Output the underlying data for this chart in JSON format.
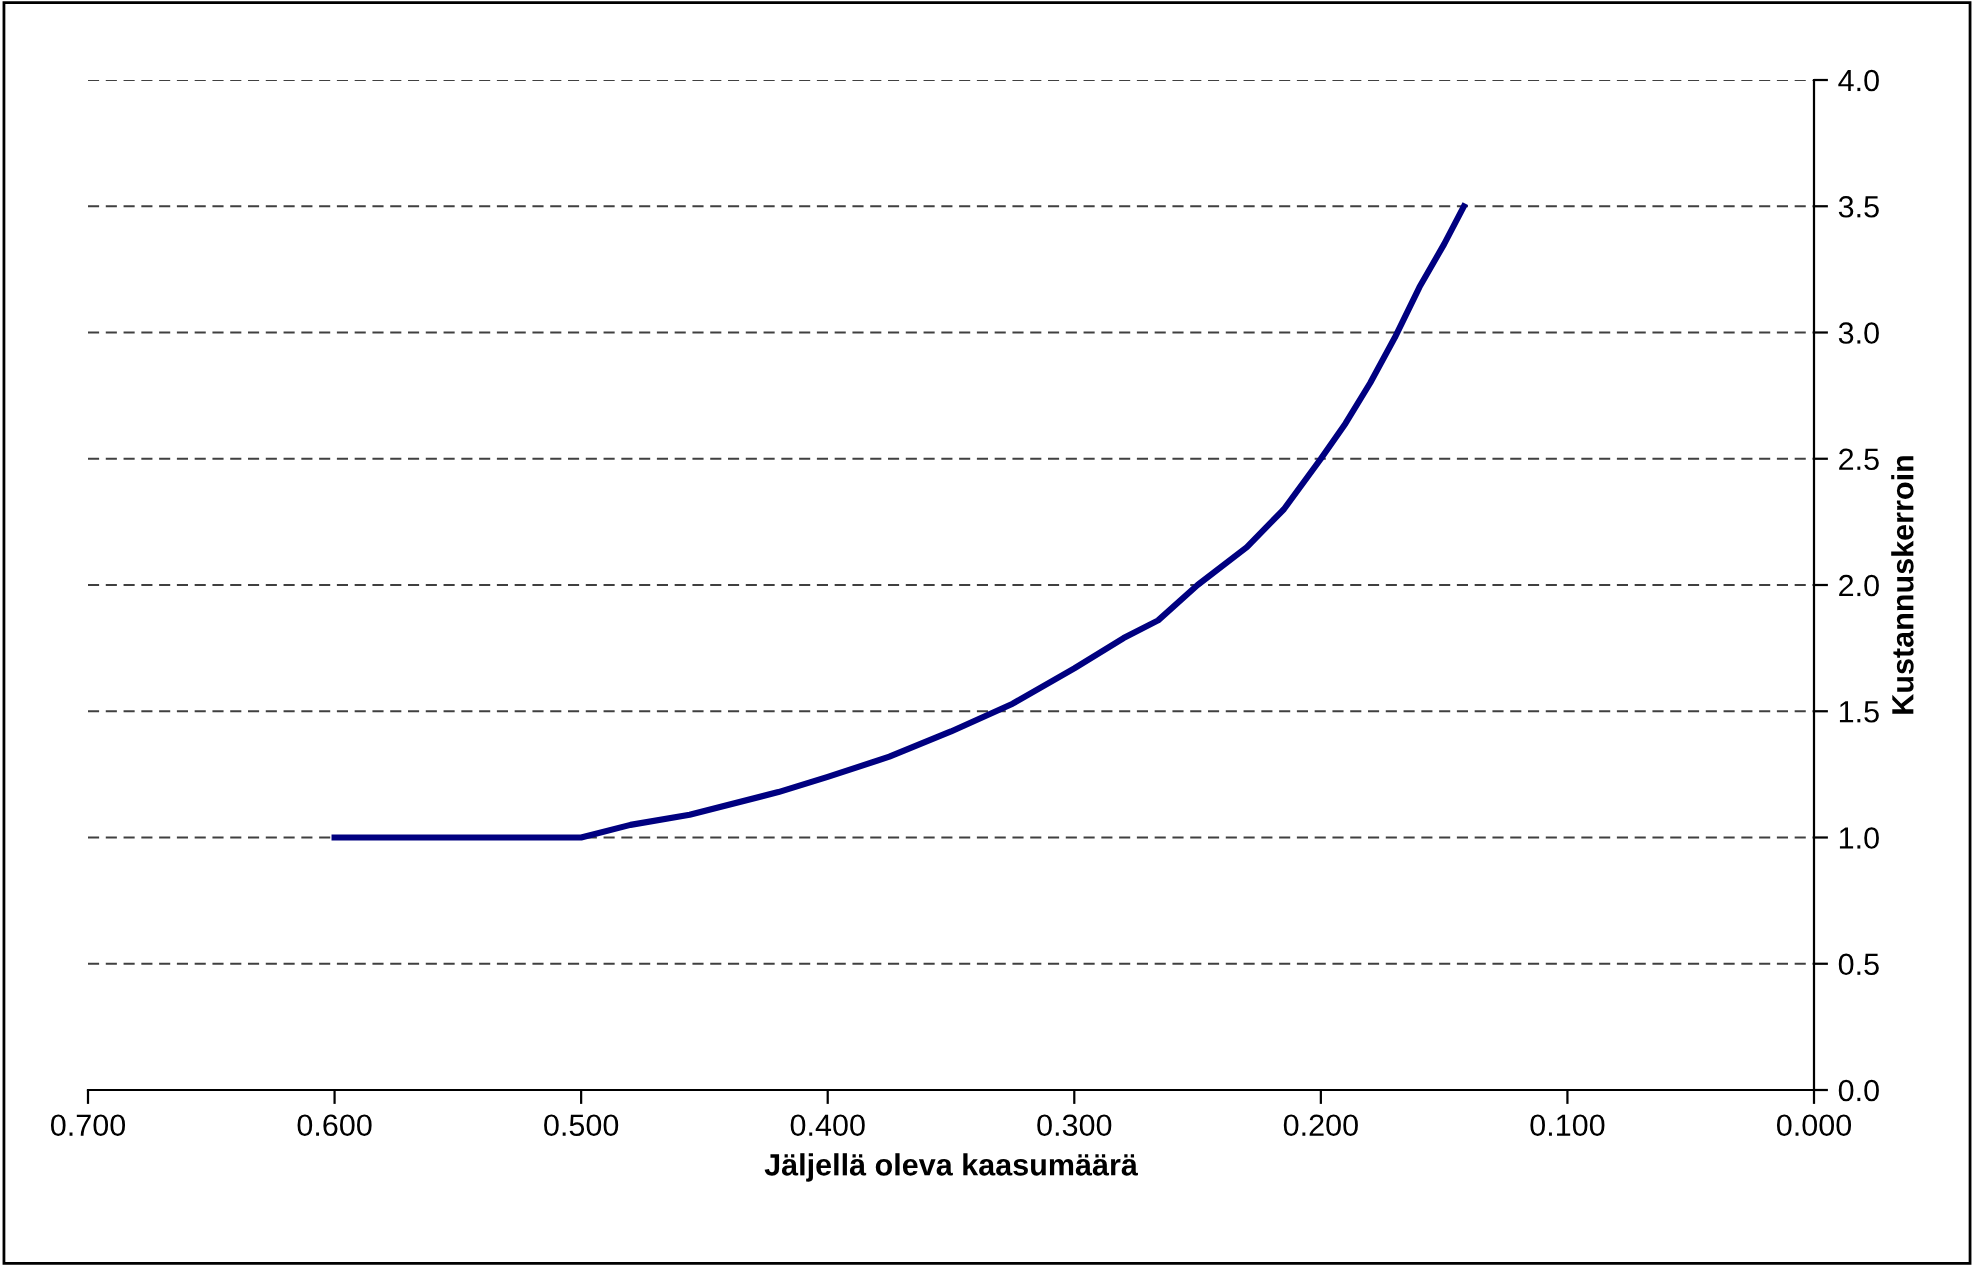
{
  "chart_data": {
    "type": "line",
    "xlabel": "Jäljellä oleva kaasumäärä",
    "ylabel": "Kustannuskerroin",
    "series": [
      {
        "color": "#000080",
        "x": [
          0.6,
          0.5,
          0.48,
          0.456,
          0.42,
          0.4,
          0.375,
          0.35,
          0.325,
          0.3,
          0.28,
          0.266,
          0.25,
          0.23,
          0.215,
          0.2,
          0.19,
          0.18,
          0.17,
          0.16,
          0.15,
          0.142
        ],
        "values": [
          1.0,
          1.0,
          1.05,
          1.09,
          1.18,
          1.24,
          1.32,
          1.42,
          1.53,
          1.67,
          1.79,
          1.86,
          2.0,
          2.15,
          2.3,
          2.5,
          2.64,
          2.8,
          2.98,
          3.18,
          3.35,
          3.5
        ]
      }
    ],
    "xlim": [
      0.7,
      0.0
    ],
    "xticks": [
      {
        "value": 0.7,
        "label": "0.700"
      },
      {
        "value": 0.6,
        "label": "0.600"
      },
      {
        "value": 0.5,
        "label": "0.500"
      },
      {
        "value": 0.4,
        "label": "0.400"
      },
      {
        "value": 0.3,
        "label": "0.300"
      },
      {
        "value": 0.2,
        "label": "0.200"
      },
      {
        "value": 0.1,
        "label": "0.100"
      },
      {
        "value": 0.0,
        "label": "0.000"
      }
    ],
    "ylim": [
      0,
      4
    ],
    "yticks": [
      {
        "value": 0,
        "label": "0.0"
      },
      {
        "value": 0.5,
        "label": "0.5"
      },
      {
        "value": 1,
        "label": "1.0"
      },
      {
        "value": 1.5,
        "label": "1.5"
      },
      {
        "value": 2,
        "label": "2.0"
      },
      {
        "value": 2.5,
        "label": "2.5"
      },
      {
        "value": 3,
        "label": "3.0"
      },
      {
        "value": 3.5,
        "label": "3.5"
      },
      {
        "value": 4,
        "label": "4.0"
      }
    ],
    "grid": "y",
    "line_style": "solid",
    "marker": "none"
  }
}
